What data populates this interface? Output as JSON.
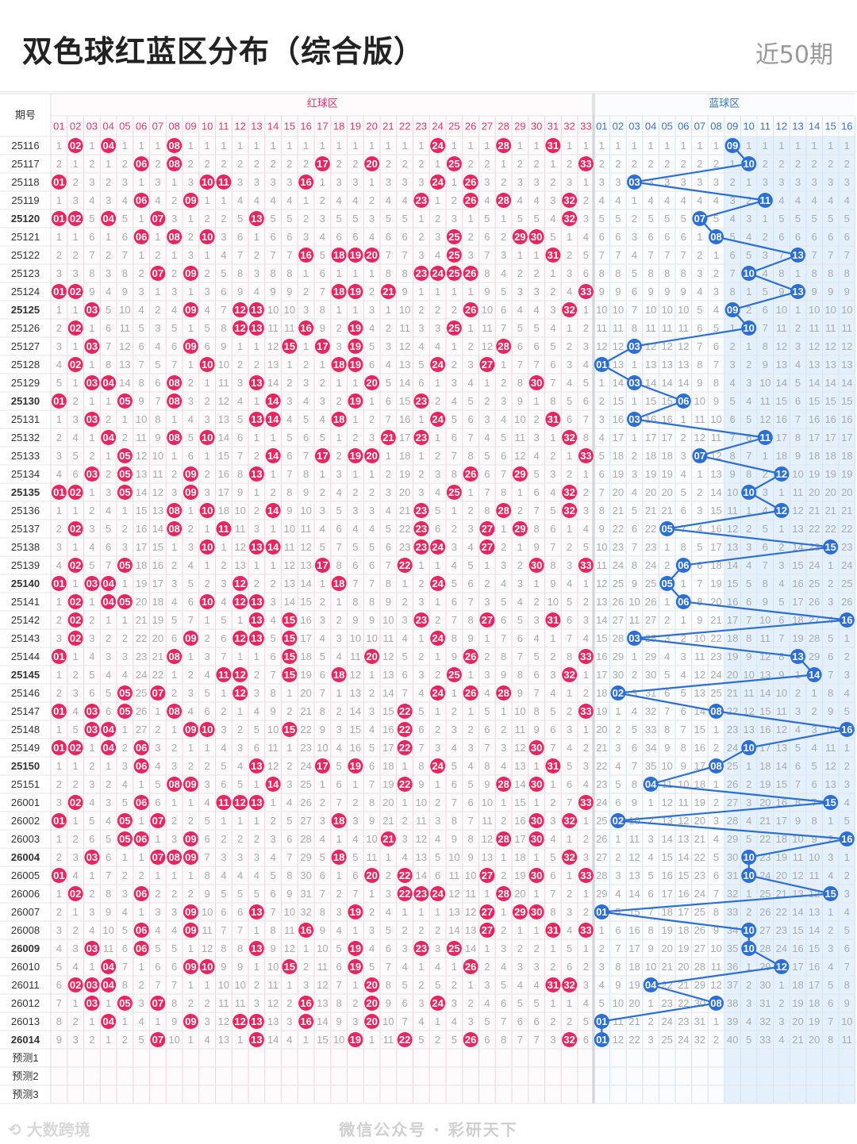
{
  "header": {
    "title": "双色球红蓝区分布（综合版）",
    "period": "近50期"
  },
  "footer": {
    "logo_text": "大数跨境",
    "watermark": "微信公众号 · 彩研天下"
  },
  "colors": {
    "red": "#e8255f",
    "blue": "#2b6fd6",
    "red_text": "#e03a6a",
    "blue_text": "#3b72c8",
    "gray": "#aaaaaa"
  },
  "chart_data": {
    "type": "table",
    "header_issue": "期号",
    "red_zone_label": "红球区",
    "blue_zone_label": "蓝球区",
    "red_numbers": [
      "01",
      "02",
      "03",
      "04",
      "05",
      "06",
      "07",
      "08",
      "09",
      "10",
      "11",
      "12",
      "13",
      "14",
      "15",
      "16",
      "17",
      "18",
      "19",
      "20",
      "21",
      "22",
      "23",
      "24",
      "25",
      "26",
      "27",
      "28",
      "29",
      "30",
      "31",
      "32",
      "33"
    ],
    "blue_numbers": [
      "01",
      "02",
      "03",
      "04",
      "05",
      "06",
      "07",
      "08",
      "09",
      "10",
      "11",
      "12",
      "13",
      "14",
      "15",
      "16"
    ],
    "predict_rows": [
      "预测1",
      "预测2",
      "预测3"
    ],
    "draws": [
      {
        "issue": "25116",
        "red": [
          2,
          4,
          8,
          24,
          28,
          31
        ],
        "blue": 9
      },
      {
        "issue": "25117",
        "red": [
          6,
          8,
          17,
          20,
          25,
          33
        ],
        "blue": 10
      },
      {
        "issue": "25118",
        "red": [
          1,
          10,
          11,
          16,
          24,
          26
        ],
        "blue": 3
      },
      {
        "issue": "25119",
        "red": [
          6,
          9,
          23,
          26,
          28,
          32
        ],
        "blue": 11
      },
      {
        "issue": "25120",
        "red": [
          1,
          2,
          4,
          7,
          13,
          32
        ],
        "blue": 7
      },
      {
        "issue": "25121",
        "red": [
          6,
          8,
          10,
          25,
          29,
          30
        ],
        "blue": 8
      },
      {
        "issue": "25122",
        "red": [
          16,
          18,
          19,
          20,
          25,
          31
        ],
        "blue": 13
      },
      {
        "issue": "25123",
        "red": [
          7,
          9,
          23,
          24,
          25,
          26
        ],
        "blue": 10
      },
      {
        "issue": "25124",
        "red": [
          1,
          2,
          18,
          19,
          21,
          33
        ],
        "blue": 13
      },
      {
        "issue": "25125",
        "red": [
          3,
          9,
          12,
          13,
          26,
          32
        ],
        "blue": 9
      },
      {
        "issue": "25126",
        "red": [
          2,
          12,
          13,
          16,
          19,
          25
        ],
        "blue": 10
      },
      {
        "issue": "25127",
        "red": [
          3,
          9,
          15,
          17,
          19,
          28
        ],
        "blue": 3
      },
      {
        "issue": "25128",
        "red": [
          2,
          10,
          18,
          19,
          24,
          27
        ],
        "blue": 1
      },
      {
        "issue": "25129",
        "red": [
          3,
          4,
          8,
          13,
          20,
          30
        ],
        "blue": 3
      },
      {
        "issue": "25130",
        "red": [
          1,
          5,
          8,
          14,
          19,
          23
        ],
        "blue": 6
      },
      {
        "issue": "25131",
        "red": [
          3,
          14,
          13,
          18,
          24,
          31
        ],
        "blue": 3
      },
      {
        "issue": "25132",
        "red": [
          4,
          8,
          10,
          21,
          23,
          32
        ],
        "blue": 11
      },
      {
        "issue": "25133",
        "red": [
          5,
          14,
          17,
          19,
          20,
          33
        ],
        "blue": 7
      },
      {
        "issue": "25134",
        "red": [
          3,
          5,
          9,
          13,
          26,
          29
        ],
        "blue": 12
      },
      {
        "issue": "25135",
        "red": [
          1,
          2,
          5,
          9,
          25,
          32
        ],
        "blue": 10
      },
      {
        "issue": "25136",
        "red": [
          8,
          10,
          14,
          23,
          28,
          32
        ],
        "blue": 12
      },
      {
        "issue": "25137",
        "red": [
          2,
          8,
          11,
          23,
          27,
          29
        ],
        "blue": 5
      },
      {
        "issue": "25138",
        "red": [
          10,
          13,
          14,
          23,
          24,
          27
        ],
        "blue": 15
      },
      {
        "issue": "25139",
        "red": [
          2,
          5,
          17,
          22,
          30,
          33
        ],
        "blue": 6
      },
      {
        "issue": "25140",
        "red": [
          1,
          3,
          4,
          12,
          18,
          24
        ],
        "blue": 5
      },
      {
        "issue": "25141",
        "red": [
          2,
          4,
          5,
          10,
          12,
          13
        ],
        "blue": 6
      },
      {
        "issue": "25142",
        "red": [
          2,
          13,
          15,
          23,
          27,
          31
        ],
        "blue": 16
      },
      {
        "issue": "25143",
        "red": [
          2,
          9,
          12,
          13,
          15,
          24
        ],
        "blue": 3
      },
      {
        "issue": "25144",
        "red": [
          1,
          8,
          15,
          20,
          26,
          33
        ],
        "blue": 13
      },
      {
        "issue": "25145",
        "red": [
          11,
          12,
          15,
          18,
          25,
          32
        ],
        "blue": 14
      },
      {
        "issue": "25146",
        "red": [
          5,
          7,
          12,
          24,
          26,
          28
        ],
        "blue": 2
      },
      {
        "issue": "25147",
        "red": [
          1,
          3,
          5,
          8,
          22,
          33
        ],
        "blue": 8
      },
      {
        "issue": "25148",
        "red": [
          3,
          4,
          9,
          10,
          15,
          22
        ],
        "blue": 16
      },
      {
        "issue": "25149",
        "red": [
          1,
          2,
          4,
          6,
          22,
          30
        ],
        "blue": 10
      },
      {
        "issue": "25150",
        "red": [
          6,
          13,
          17,
          19,
          24,
          31
        ],
        "blue": 8
      },
      {
        "issue": "25151",
        "red": [
          8,
          9,
          14,
          22,
          28,
          30
        ],
        "blue": 4
      },
      {
        "issue": "26001",
        "red": [
          2,
          6,
          11,
          12,
          13,
          33
        ],
        "blue": 15
      },
      {
        "issue": "26002",
        "red": [
          1,
          5,
          7,
          18,
          30,
          32
        ],
        "blue": 2
      },
      {
        "issue": "26003",
        "red": [
          5,
          6,
          9,
          21,
          28,
          30
        ],
        "blue": 16
      },
      {
        "issue": "26004",
        "red": [
          3,
          7,
          8,
          9,
          18,
          32
        ],
        "blue": 10
      },
      {
        "issue": "26005",
        "red": [
          1,
          20,
          22,
          27,
          30,
          33
        ],
        "blue": 10
      },
      {
        "issue": "26006",
        "red": [
          2,
          6,
          22,
          23,
          24,
          28
        ],
        "blue": 15
      },
      {
        "issue": "26007",
        "red": [
          9,
          13,
          19,
          29,
          30,
          27
        ],
        "blue": 1
      },
      {
        "issue": "26008",
        "red": [
          6,
          9,
          16,
          27,
          31,
          33
        ],
        "blue": 10
      },
      {
        "issue": "26009",
        "red": [
          3,
          6,
          13,
          19,
          23,
          25
        ],
        "blue": 10
      },
      {
        "issue": "26010",
        "red": [
          4,
          9,
          10,
          15,
          19,
          26
        ],
        "blue": 12
      },
      {
        "issue": "26011",
        "red": [
          2,
          3,
          4,
          20,
          31,
          32
        ],
        "blue": 4
      },
      {
        "issue": "26012",
        "red": [
          3,
          5,
          7,
          16,
          20,
          24
        ],
        "blue": 8
      },
      {
        "issue": "26013",
        "red": [
          4,
          9,
          12,
          13,
          16,
          20
        ],
        "blue": 1
      },
      {
        "issue": "26014",
        "red": [
          7,
          13,
          19,
          22,
          26,
          32
        ],
        "blue": 1
      }
    ]
  }
}
